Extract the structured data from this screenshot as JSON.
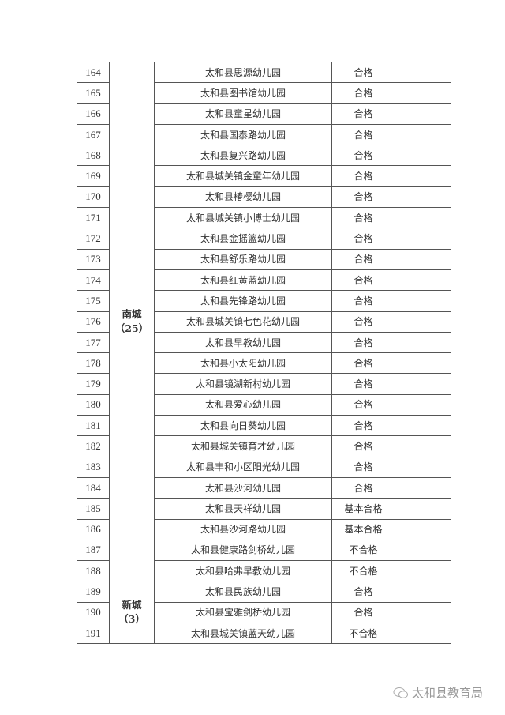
{
  "regions": [
    {
      "label": "南城",
      "count": "（25）",
      "rows": [
        {
          "no": "164",
          "name": "太和县思源幼儿园",
          "result": "合格"
        },
        {
          "no": "165",
          "name": "太和县图书馆幼儿园",
          "result": "合格"
        },
        {
          "no": "166",
          "name": "太和县童星幼儿园",
          "result": "合格"
        },
        {
          "no": "167",
          "name": "太和县国泰路幼儿园",
          "result": "合格"
        },
        {
          "no": "168",
          "name": "太和县复兴路幼儿园",
          "result": "合格"
        },
        {
          "no": "169",
          "name": "太和县城关镇金童年幼儿园",
          "result": "合格"
        },
        {
          "no": "170",
          "name": "太和县椿樱幼儿园",
          "result": "合格"
        },
        {
          "no": "171",
          "name": "太和县城关镇小博士幼儿园",
          "result": "合格"
        },
        {
          "no": "172",
          "name": "太和县金摇篮幼儿园",
          "result": "合格"
        },
        {
          "no": "173",
          "name": "太和县舒乐路幼儿园",
          "result": "合格"
        },
        {
          "no": "174",
          "name": "太和县红黄蓝幼儿园",
          "result": "合格"
        },
        {
          "no": "175",
          "name": "太和县先锋路幼儿园",
          "result": "合格"
        },
        {
          "no": "176",
          "name": "太和县城关镇七色花幼儿园",
          "result": "合格"
        },
        {
          "no": "177",
          "name": "太和县早教幼儿园",
          "result": "合格"
        },
        {
          "no": "178",
          "name": "太和县小太阳幼儿园",
          "result": "合格"
        },
        {
          "no": "179",
          "name": "太和县镜湖新村幼儿园",
          "result": "合格"
        },
        {
          "no": "180",
          "name": "太和县爱心幼儿园",
          "result": "合格"
        },
        {
          "no": "181",
          "name": "太和县向日葵幼儿园",
          "result": "合格"
        },
        {
          "no": "182",
          "name": "太和县城关镇育才幼儿园",
          "result": "合格"
        },
        {
          "no": "183",
          "name": "太和县丰和小区阳光幼儿园",
          "result": "合格"
        },
        {
          "no": "184",
          "name": "太和县沙河幼儿园",
          "result": "合格"
        },
        {
          "no": "185",
          "name": "太和县天祥幼儿园",
          "result": "基本合格"
        },
        {
          "no": "186",
          "name": "太和县沙河路幼儿园",
          "result": "基本合格"
        },
        {
          "no": "187",
          "name": "太和县健康路剑桥幼儿园",
          "result": "不合格"
        },
        {
          "no": "188",
          "name": "太和县哈弗早教幼儿园",
          "result": "不合格"
        }
      ]
    },
    {
      "label": "新城",
      "count": "（3）",
      "rows": [
        {
          "no": "189",
          "name": "太和县民族幼儿园",
          "result": "合格"
        },
        {
          "no": "190",
          "name": "太和县宝雅剑桥幼儿园",
          "result": "合格"
        },
        {
          "no": "191",
          "name": "太和县城关镇蓝天幼儿园",
          "result": "不合格"
        }
      ]
    }
  ],
  "watermark": {
    "icon": "wechat-icon",
    "text": "太和县教育局"
  }
}
